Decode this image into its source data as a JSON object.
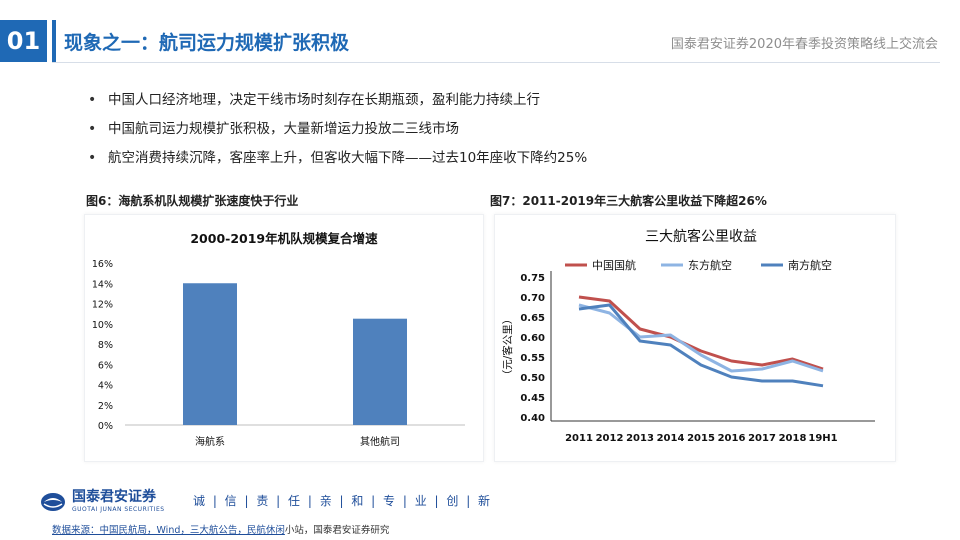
{
  "header": {
    "section_number": "01",
    "title": "现象之一：航司运力规模扩张积极",
    "right_text": "国泰君安证券2020年春季投资策略线上交流会"
  },
  "bullets": [
    "中国人口经济地理，决定干线市场时刻存在长期瓶颈，盈利能力持续上行",
    "中国航司运力规模扩张积极，大量新增运力投放二三线市场",
    "航空消费持续沉降，客座率上升，但客收大幅下降——过去10年座收下降约25%"
  ],
  "figures": {
    "left_caption": "图6：海航系机队规模扩张速度快于行业",
    "right_caption": "图7：2011-2019年三大航客公里收益下降超26%"
  },
  "chart_data": [
    {
      "type": "bar",
      "title": "2000-2019年机队规模复合增速",
      "categories": [
        "海航系",
        "其他航司"
      ],
      "values": [
        0.14,
        0.105
      ],
      "ylim": [
        0,
        0.16
      ],
      "yticks": [
        "0%",
        "2%",
        "4%",
        "6%",
        "8%",
        "10%",
        "12%",
        "14%",
        "16%"
      ],
      "xlabel": "",
      "ylabel": "",
      "grid": false,
      "color": "#4F81BD"
    },
    {
      "type": "line",
      "title": "三大航客公里收益",
      "x": [
        "2011",
        "2012",
        "2013",
        "2014",
        "2015",
        "2016",
        "2017",
        "2018",
        "19H1"
      ],
      "ylabel": "（元/客公里）",
      "ylim": [
        0.4,
        0.75
      ],
      "yticks": [
        "0.40",
        "0.45",
        "0.50",
        "0.55",
        "0.60",
        "0.65",
        "0.70",
        "0.75"
      ],
      "grid": false,
      "legend": "top",
      "series": [
        {
          "name": "中国国航",
          "color": "#C0504D",
          "values": [
            0.7,
            0.69,
            0.62,
            0.6,
            0.565,
            0.54,
            0.53,
            0.545,
            0.52
          ]
        },
        {
          "name": "东方航空",
          "color": "#8EB4E3",
          "values": [
            0.68,
            0.66,
            0.6,
            0.605,
            0.555,
            0.515,
            0.52,
            0.54,
            0.515
          ]
        },
        {
          "name": "南方航空",
          "color": "#4F81BD",
          "values": [
            0.67,
            0.68,
            0.59,
            0.58,
            0.53,
            0.5,
            0.49,
            0.49,
            0.478
          ]
        }
      ]
    }
  ],
  "footer": {
    "logo_cn": "国泰君安证券",
    "logo_en": "GUOTAI JUNAN SECURITIES",
    "slogan": "诚 | 信 | 责 | 任 | 亲 | 和 | 专 | 业 | 创 | 新",
    "source_blue": "数据来源：中国民航局，Wind，三大航公告，民航休闲",
    "source_rest": "小站，国泰君安证券研究"
  },
  "colors": {
    "brand_blue": "#1F69B5"
  }
}
